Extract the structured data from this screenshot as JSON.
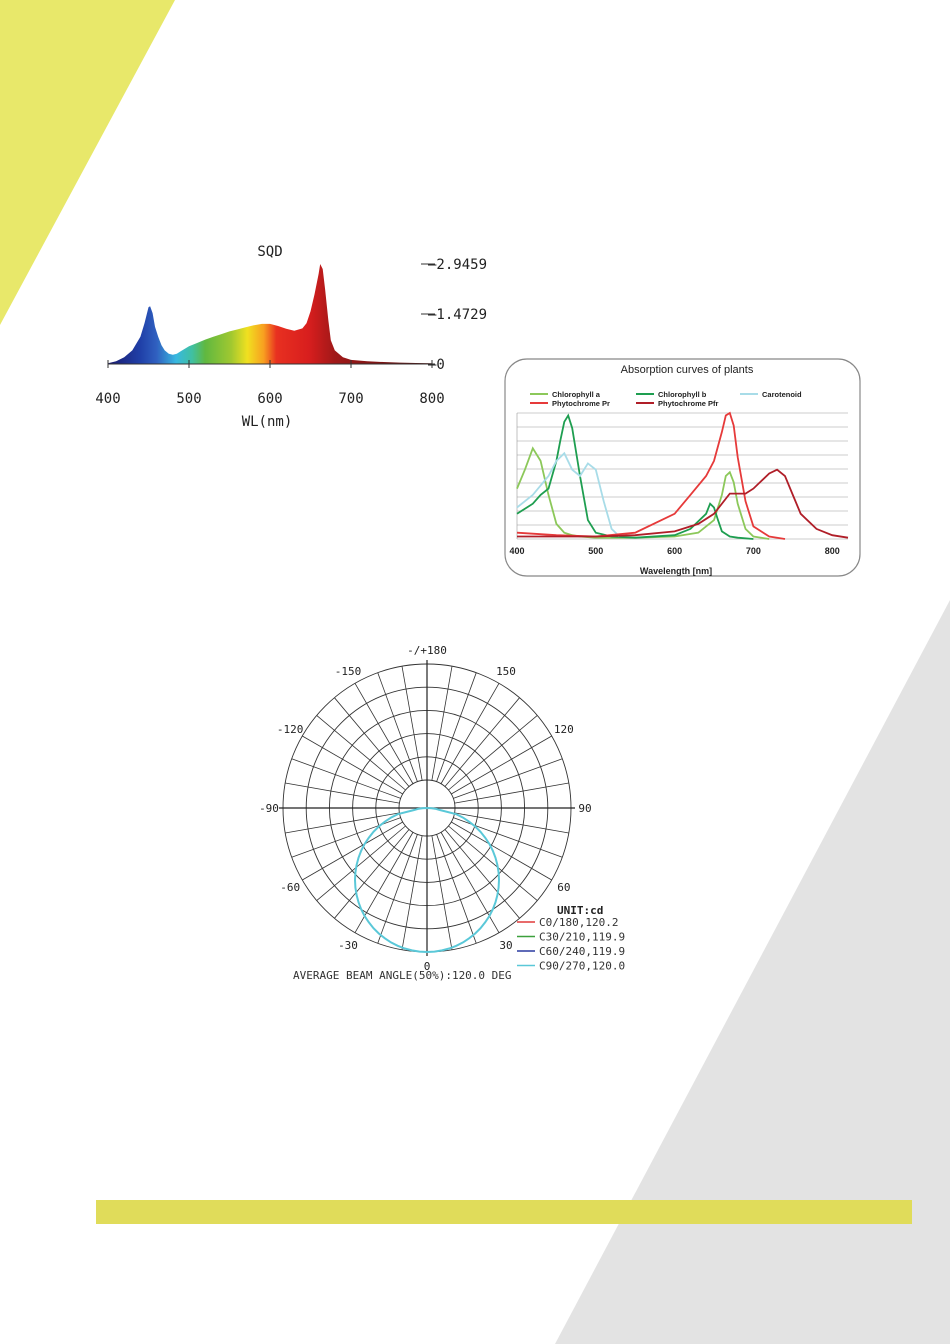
{
  "colors": {
    "yellow_accent": "#e8e86a",
    "gray_accent": "#e3e3e3",
    "bottom_bar": "#e0dc5a"
  },
  "chart_data": [
    {
      "id": "spectrum",
      "type": "area",
      "title": "SQD",
      "xlabel": "WL(nm)",
      "x_ticks": [
        400,
        500,
        600,
        700,
        800
      ],
      "y_ticks": [
        "2.9459",
        "1.4729",
        "0"
      ],
      "xlim": [
        400,
        800
      ],
      "ylim": [
        0,
        2.9459
      ],
      "x": [
        400,
        410,
        420,
        430,
        440,
        445,
        450,
        452,
        455,
        458,
        462,
        466,
        470,
        475,
        480,
        485,
        490,
        500,
        510,
        520,
        530,
        540,
        550,
        560,
        570,
        580,
        590,
        600,
        610,
        620,
        630,
        640,
        645,
        650,
        655,
        660,
        662,
        665,
        668,
        672,
        675,
        680,
        690,
        700,
        720,
        740,
        760,
        780,
        800
      ],
      "values": [
        0.02,
        0.08,
        0.2,
        0.4,
        0.8,
        1.2,
        1.67,
        1.7,
        1.5,
        1.1,
        0.8,
        0.55,
        0.4,
        0.3,
        0.27,
        0.3,
        0.38,
        0.52,
        0.62,
        0.72,
        0.8,
        0.88,
        0.96,
        1.02,
        1.08,
        1.14,
        1.18,
        1.18,
        1.12,
        1.04,
        0.98,
        1.05,
        1.2,
        1.55,
        2.05,
        2.65,
        2.9459,
        2.8,
        2.2,
        1.3,
        0.7,
        0.4,
        0.2,
        0.12,
        0.08,
        0.06,
        0.04,
        0.03,
        0.02
      ]
    },
    {
      "id": "absorption",
      "type": "line",
      "title": "Absorption curves of plants",
      "xlabel": "Wavelength [nm]",
      "x_ticks": [
        400,
        500,
        600,
        700,
        800
      ],
      "xlim": [
        400,
        820
      ],
      "ylim": [
        0,
        1
      ],
      "series": [
        {
          "name": "Chlorophyll a",
          "color": "#8cc85a",
          "x": [
            400,
            410,
            420,
            430,
            440,
            450,
            460,
            470,
            480,
            500,
            550,
            600,
            630,
            650,
            660,
            665,
            670,
            675,
            680,
            690,
            700,
            720
          ],
          "values": [
            0.4,
            0.55,
            0.72,
            0.62,
            0.35,
            0.12,
            0.05,
            0.03,
            0.02,
            0.01,
            0.01,
            0.02,
            0.05,
            0.15,
            0.35,
            0.5,
            0.53,
            0.45,
            0.28,
            0.08,
            0.02,
            0.0
          ]
        },
        {
          "name": "Chlorophyll b",
          "color": "#1e9e50",
          "x": [
            400,
            420,
            430,
            440,
            450,
            455,
            460,
            465,
            470,
            480,
            490,
            500,
            520,
            550,
            600,
            620,
            640,
            645,
            650,
            655,
            660,
            670,
            680,
            700
          ],
          "values": [
            0.2,
            0.28,
            0.35,
            0.4,
            0.62,
            0.78,
            0.93,
            0.98,
            0.88,
            0.5,
            0.15,
            0.05,
            0.02,
            0.01,
            0.03,
            0.08,
            0.2,
            0.28,
            0.25,
            0.15,
            0.06,
            0.02,
            0.01,
            0.0
          ]
        },
        {
          "name": "Carotenoid",
          "color": "#a8dce8",
          "x": [
            400,
            420,
            440,
            450,
            460,
            470,
            480,
            490,
            500,
            510,
            520,
            530
          ],
          "values": [
            0.25,
            0.35,
            0.5,
            0.62,
            0.68,
            0.55,
            0.5,
            0.6,
            0.55,
            0.3,
            0.08,
            0.02
          ]
        },
        {
          "name": "Phytochrome Pr",
          "color": "#e63a3a",
          "x": [
            400,
            450,
            500,
            550,
            600,
            620,
            640,
            650,
            660,
            665,
            670,
            675,
            680,
            690,
            700,
            720,
            740
          ],
          "values": [
            0.05,
            0.03,
            0.02,
            0.05,
            0.2,
            0.35,
            0.5,
            0.62,
            0.85,
            0.98,
            1.0,
            0.9,
            0.65,
            0.3,
            0.1,
            0.02,
            0.0
          ]
        },
        {
          "name": "Phytochrome Pfr",
          "color": "#b01e28",
          "x": [
            400,
            450,
            500,
            550,
            600,
            630,
            650,
            670,
            690,
            700,
            710,
            720,
            730,
            740,
            750,
            760,
            780,
            800,
            820
          ],
          "values": [
            0.02,
            0.02,
            0.02,
            0.03,
            0.06,
            0.12,
            0.2,
            0.36,
            0.36,
            0.4,
            0.46,
            0.52,
            0.55,
            0.5,
            0.35,
            0.2,
            0.08,
            0.03,
            0.01
          ]
        }
      ]
    },
    {
      "id": "beam",
      "type": "polar",
      "angle_labels": [
        "-/+180",
        "150",
        "120",
        "90",
        "60",
        "30",
        "0",
        "-30",
        "-60",
        "-90",
        "-120",
        "-150"
      ],
      "unit_label": "UNIT:cd",
      "series": [
        {
          "name": "C0/180,120.2",
          "color": "#e03a3a"
        },
        {
          "name": "C30/210,119.9",
          "color": "#3ca03c"
        },
        {
          "name": "C60/240,119.9",
          "color": "#2a3aa0"
        },
        {
          "name": "C90/270,120.0",
          "color": "#5ac8d8"
        }
      ],
      "footer": "AVERAGE BEAM ANGLE(50%):120.0 DEG"
    }
  ]
}
